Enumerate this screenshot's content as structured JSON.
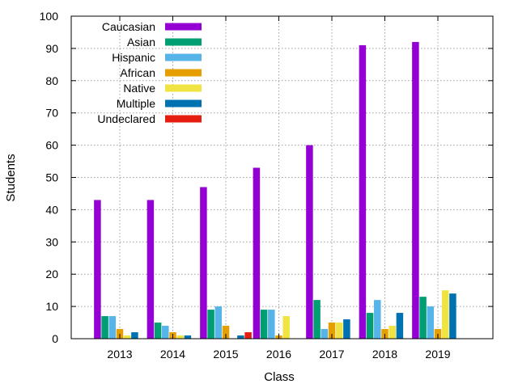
{
  "chart_data": {
    "type": "bar",
    "title": "",
    "xlabel": "Class",
    "ylabel": "Students",
    "ylim": [
      0,
      100
    ],
    "yticks": [
      0,
      10,
      20,
      30,
      40,
      50,
      60,
      70,
      80,
      90,
      100
    ],
    "grid": true,
    "legend_position": "top-left",
    "categories": [
      "2013",
      "2014",
      "2015",
      "2016",
      "2017",
      "2018",
      "2019"
    ],
    "series": [
      {
        "name": "Caucasian",
        "color": "#9400d3",
        "values": [
          43,
          43,
          47,
          53,
          60,
          91,
          92
        ]
      },
      {
        "name": "Asian",
        "color": "#009e73",
        "values": [
          7,
          5,
          9,
          9,
          12,
          8,
          13
        ]
      },
      {
        "name": "Hispanic",
        "color": "#56b4e9",
        "values": [
          7,
          4,
          10,
          9,
          3,
          12,
          10
        ]
      },
      {
        "name": "African",
        "color": "#e69f00",
        "values": [
          3,
          2,
          4,
          1,
          5,
          3,
          3
        ]
      },
      {
        "name": "Native",
        "color": "#f0e442",
        "values": [
          1,
          1,
          0,
          7,
          5,
          4,
          15
        ]
      },
      {
        "name": "Multiple",
        "color": "#0072b2",
        "values": [
          2,
          1,
          1,
          0,
          6,
          8,
          14
        ]
      },
      {
        "name": "Undeclared",
        "color": "#e51e10",
        "values": [
          0,
          0,
          2,
          0,
          0,
          0,
          0
        ]
      }
    ]
  }
}
